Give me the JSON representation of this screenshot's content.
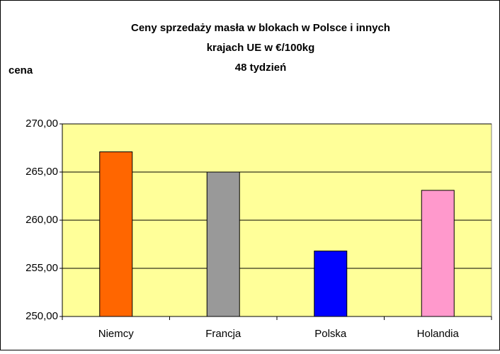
{
  "chart_data": {
    "type": "bar",
    "title": [
      "Ceny sprzedaży masła w blokach w Polsce i  innych",
      "krajach UE w €/100kg",
      "48 tydzień"
    ],
    "y_label": "cena",
    "categories": [
      "Niemcy",
      "Francja",
      "Polska",
      "Holandia"
    ],
    "values": [
      267.1,
      265.0,
      256.8,
      263.1
    ],
    "colors": [
      "#ff6600",
      "#999999",
      "#0000ff",
      "#ff99cc"
    ],
    "ylim": [
      250,
      270
    ],
    "yticks": [
      {
        "value": 250,
        "label": "250,00"
      },
      {
        "value": 255,
        "label": "255,00"
      },
      {
        "value": 260,
        "label": "260,00"
      },
      {
        "value": 265,
        "label": "265,00"
      },
      {
        "value": 270,
        "label": "270,00"
      }
    ],
    "grid": true,
    "plot_background": "#ffff99"
  }
}
